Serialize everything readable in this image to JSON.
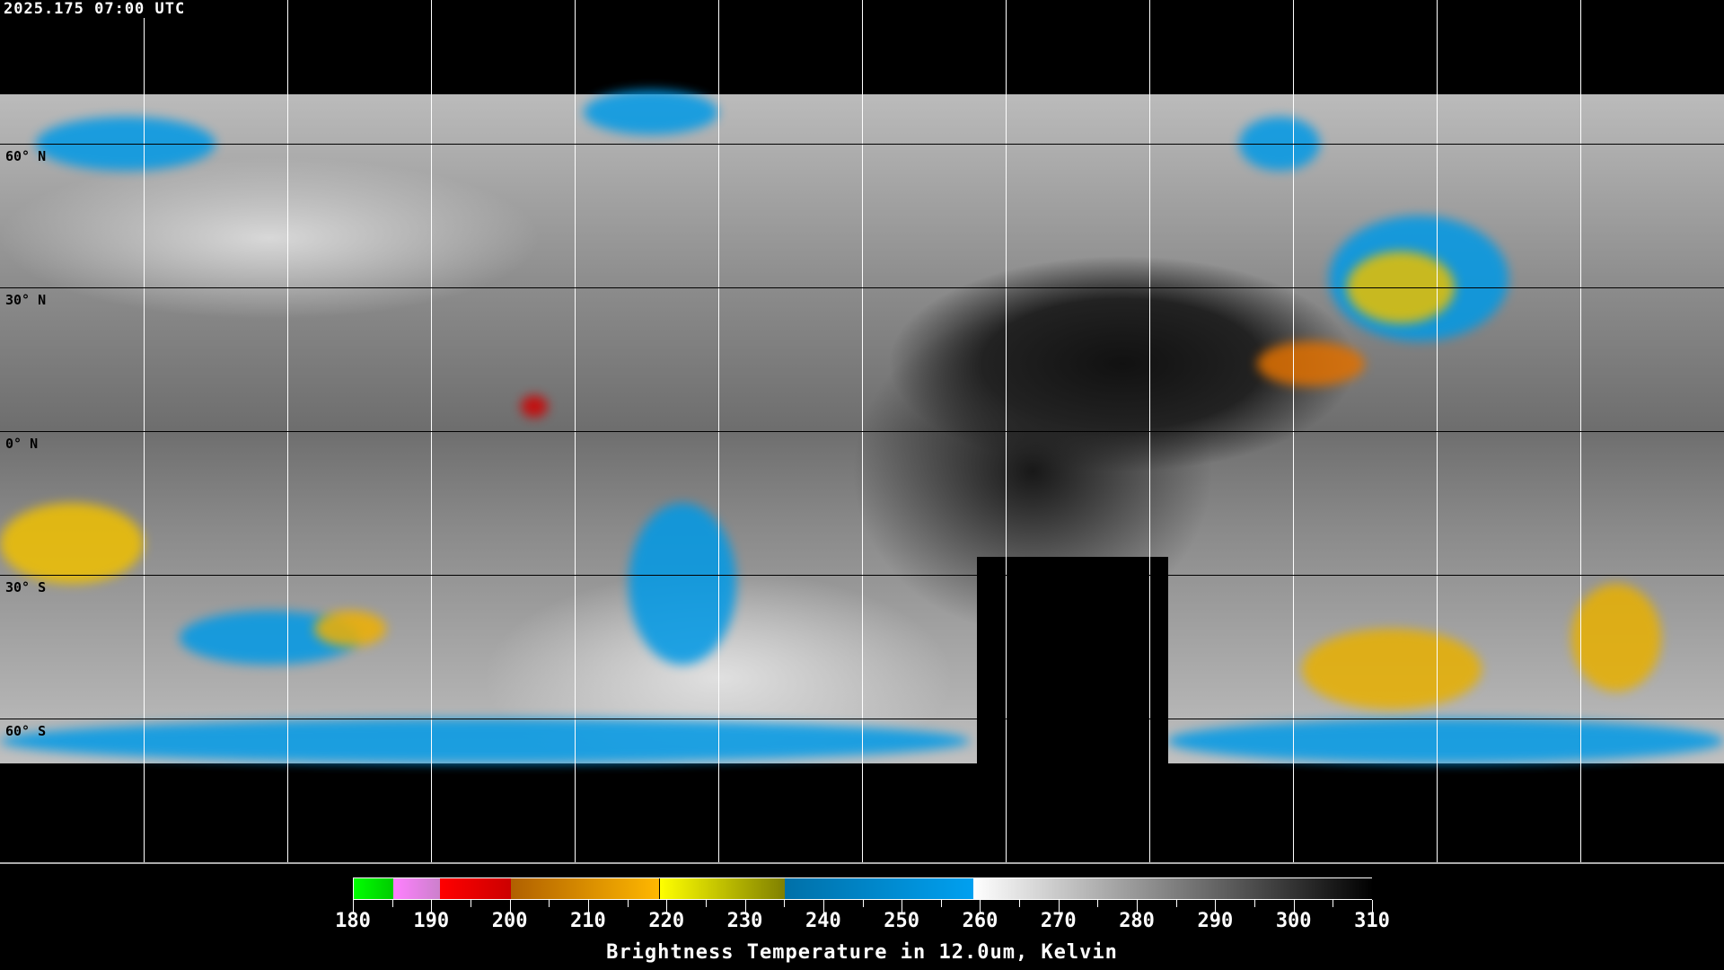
{
  "timestamp": "2025.175 07:00 UTC",
  "map": {
    "projection": "equirectangular",
    "lat_labels": [
      "60° N",
      "30° N",
      "0° N",
      "30° S",
      "60° S"
    ],
    "grid_spacing_degrees": 30
  },
  "colorbar": {
    "title": "Brightness Temperature in 12.0um, Kelvin",
    "range": [
      180,
      310
    ],
    "tick_labels": [
      "180",
      "190",
      "200",
      "210",
      "220",
      "230",
      "240",
      "250",
      "260",
      "270",
      "280",
      "290",
      "300",
      "310"
    ],
    "segments": [
      {
        "from": 180,
        "to": 185,
        "colors": [
          "#00ff00",
          "#00cc00"
        ]
      },
      {
        "from": 185,
        "to": 191,
        "colors": [
          "#ff80ff",
          "#cc80cc"
        ]
      },
      {
        "from": 191,
        "to": 200,
        "colors": [
          "#ff0000",
          "#cc0000"
        ]
      },
      {
        "from": 200,
        "to": 219,
        "colors": [
          "#b06000",
          "#ffb800"
        ]
      },
      {
        "from": 219,
        "to": 235,
        "colors": [
          "#ffff00",
          "#808000"
        ]
      },
      {
        "from": 235,
        "to": 259,
        "colors": [
          "#0070a8",
          "#00a0f0"
        ]
      },
      {
        "from": 259,
        "to": 310,
        "colors": [
          "#ffffff",
          "#000000"
        ]
      }
    ]
  }
}
